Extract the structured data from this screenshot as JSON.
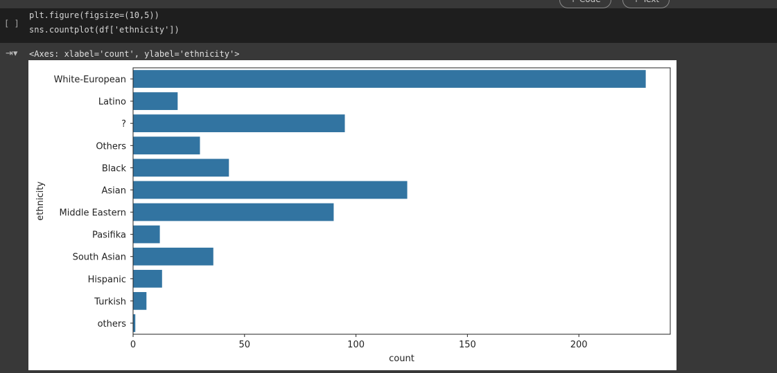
{
  "toolbar": {
    "code_label": "+ Code",
    "text_label": "+ Text"
  },
  "cell": {
    "run_indicator": "[ ]",
    "code_lines": [
      "plt.figure(figsize=(10,5))",
      "sns.countplot(df['ethnicity'])"
    ],
    "output_text": "<Axes: xlabel='count', ylabel='ethnicity'>"
  },
  "chart_data": {
    "type": "bar",
    "orientation": "horizontal",
    "categories": [
      "White-European",
      "Latino",
      "?",
      "Others",
      "Black",
      "Asian",
      "Middle Eastern ",
      "Pasifika",
      "South Asian",
      "Hispanic",
      "Turkish",
      "others"
    ],
    "values": [
      230,
      20,
      95,
      30,
      43,
      123,
      90,
      12,
      36,
      13,
      6,
      1
    ],
    "xlabel": "count",
    "ylabel": "ethnicity",
    "xlim": [
      0,
      241
    ],
    "xticks": [
      0,
      50,
      100,
      150,
      200
    ],
    "grid": false,
    "color": "#3274a1"
  }
}
